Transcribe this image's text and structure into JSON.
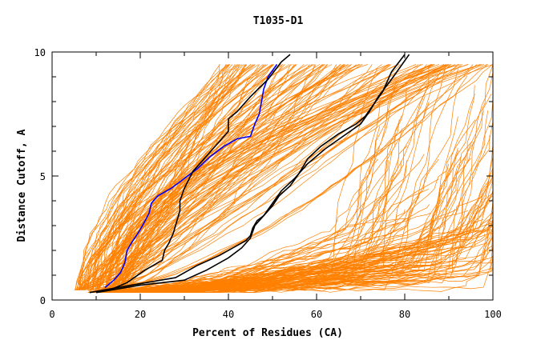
{
  "chart_data": {
    "type": "line",
    "title": "T1035-D1",
    "xlabel": "Percent of Residues (CA)",
    "ylabel": "Distance Cutoff, A",
    "xlim": [
      0,
      100
    ],
    "ylim": [
      0,
      10
    ],
    "x_ticks": [
      0,
      20,
      40,
      60,
      80,
      100
    ],
    "y_ticks": [
      0,
      5,
      10
    ],
    "grid": false,
    "legend": "none",
    "colors": {
      "background_models": "#ff8000",
      "highlight": "#0000ff",
      "reference": "#000000",
      "axes": "#000000"
    },
    "series": [
      {
        "role": "highlight",
        "points": [
          [
            12,
            0.5
          ],
          [
            14,
            0.8
          ],
          [
            15.5,
            1.1
          ],
          [
            16.5,
            1.5
          ],
          [
            17,
            2.0
          ],
          [
            18,
            2.3
          ],
          [
            19.5,
            2.7
          ],
          [
            20.5,
            3.0
          ],
          [
            22,
            3.5
          ],
          [
            22.5,
            3.9
          ],
          [
            24,
            4.2
          ],
          [
            27,
            4.5
          ],
          [
            30,
            4.9
          ],
          [
            33,
            5.3
          ],
          [
            36,
            5.8
          ],
          [
            39,
            6.2
          ],
          [
            42,
            6.5
          ],
          [
            45,
            6.6
          ],
          [
            46,
            7.1
          ],
          [
            47,
            7.5
          ],
          [
            47.5,
            8.0
          ],
          [
            48,
            8.5
          ],
          [
            49,
            9.0
          ],
          [
            51,
            9.5
          ]
        ]
      },
      {
        "role": "reference",
        "points": [
          [
            13,
            0.4
          ],
          [
            17,
            0.7
          ],
          [
            21,
            1.2
          ],
          [
            25,
            1.6
          ],
          [
            25.5,
            2.0
          ],
          [
            26.5,
            2.3
          ],
          [
            27.5,
            2.7
          ],
          [
            28,
            3.0
          ],
          [
            29,
            3.6
          ],
          [
            29,
            4.0
          ],
          [
            30,
            4.5
          ],
          [
            32,
            5.2
          ],
          [
            35,
            5.8
          ],
          [
            38,
            6.4
          ],
          [
            40,
            6.8
          ],
          [
            40,
            7.3
          ],
          [
            42,
            7.6
          ],
          [
            45,
            8.2
          ],
          [
            49,
            8.9
          ],
          [
            52,
            9.6
          ],
          [
            54,
            9.9
          ]
        ]
      },
      {
        "role": "reference",
        "points": [
          [
            8.5,
            0.3
          ],
          [
            18,
            0.6
          ],
          [
            28,
            0.9
          ],
          [
            33,
            1.4
          ],
          [
            38,
            1.8
          ],
          [
            42,
            2.2
          ],
          [
            44,
            2.4
          ],
          [
            45,
            2.6
          ],
          [
            45.5,
            2.9
          ],
          [
            46.5,
            3.2
          ],
          [
            48,
            3.4
          ],
          [
            50,
            3.8
          ],
          [
            51.5,
            4.2
          ],
          [
            54,
            4.6
          ],
          [
            56,
            5.1
          ],
          [
            58,
            5.7
          ],
          [
            61,
            6.2
          ],
          [
            65,
            6.7
          ],
          [
            69,
            7.1
          ],
          [
            71,
            7.4
          ],
          [
            73,
            7.9
          ],
          [
            75,
            8.4
          ],
          [
            76,
            8.8
          ],
          [
            77,
            9.2
          ],
          [
            80,
            9.9
          ]
        ]
      },
      {
        "role": "reference",
        "points": [
          [
            10,
            0.3
          ],
          [
            20,
            0.6
          ],
          [
            30,
            0.8
          ],
          [
            35,
            1.2
          ],
          [
            40,
            1.7
          ],
          [
            43,
            2.1
          ],
          [
            45,
            2.5
          ],
          [
            46,
            3.0
          ],
          [
            48,
            3.4
          ],
          [
            50,
            3.9
          ],
          [
            52,
            4.4
          ],
          [
            55,
            4.9
          ],
          [
            58,
            5.5
          ],
          [
            62,
            6.1
          ],
          [
            66,
            6.6
          ],
          [
            70,
            7.1
          ],
          [
            72,
            7.6
          ],
          [
            74,
            8.2
          ],
          [
            77,
            8.9
          ],
          [
            79,
            9.4
          ],
          [
            81,
            9.9
          ]
        ]
      }
    ]
  }
}
